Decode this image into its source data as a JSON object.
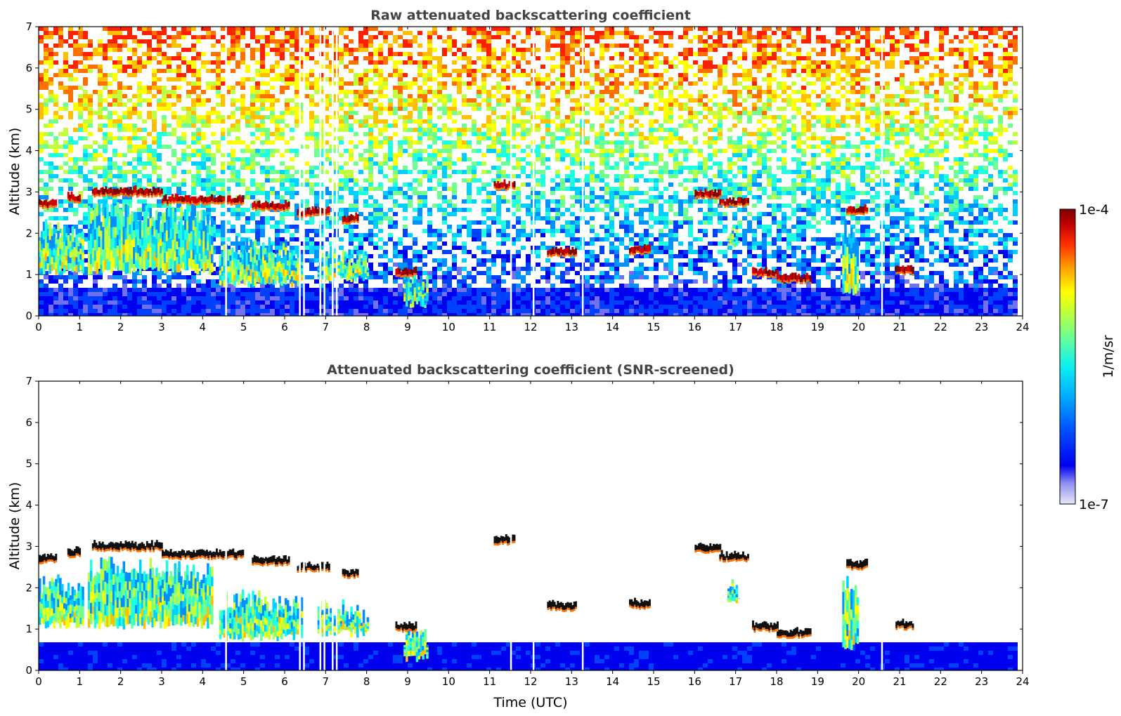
{
  "chart_data": [
    {
      "type": "heatmap",
      "title": "Raw attenuated backscattering coefficient",
      "xlabel": "",
      "ylabel": "Altitude (km)",
      "xlim": [
        0,
        24
      ],
      "ylim": [
        0,
        7
      ],
      "x_ticks": [
        "0",
        "1",
        "2",
        "3",
        "4",
        "5",
        "6",
        "7",
        "8",
        "9",
        "10",
        "11",
        "12",
        "13",
        "14",
        "15",
        "16",
        "17",
        "18",
        "19",
        "20",
        "21",
        "22",
        "23",
        "24"
      ],
      "y_ticks": [
        "0",
        "1",
        "2",
        "3",
        "4",
        "5",
        "6",
        "7"
      ],
      "data_end_time": 23.8,
      "colorscale": "jet",
      "features": {
        "cloud_layers": [
          {
            "t_start": 0.0,
            "t_end": 0.4,
            "alt": 2.65
          },
          {
            "t_start": 0.7,
            "t_end": 1.0,
            "alt": 2.8
          },
          {
            "t_start": 1.3,
            "t_end": 3.0,
            "alt": 2.95
          },
          {
            "t_start": 3.0,
            "t_end": 5.0,
            "alt": 2.75
          },
          {
            "t_start": 5.2,
            "t_end": 6.1,
            "alt": 2.6
          },
          {
            "t_start": 6.3,
            "t_end": 7.1,
            "alt": 2.45
          },
          {
            "t_start": 7.4,
            "t_end": 7.8,
            "alt": 2.3
          },
          {
            "t_start": 11.1,
            "t_end": 11.6,
            "alt": 3.1
          },
          {
            "t_start": 16.0,
            "t_end": 16.6,
            "alt": 2.9
          },
          {
            "t_start": 16.6,
            "t_end": 17.3,
            "alt": 2.7
          },
          {
            "t_start": 19.7,
            "t_end": 20.2,
            "alt": 2.5
          },
          {
            "t_start": 17.4,
            "t_end": 18.0,
            "alt": 1.0
          },
          {
            "t_start": 18.0,
            "t_end": 18.8,
            "alt": 0.85
          },
          {
            "t_start": 20.9,
            "t_end": 21.3,
            "alt": 1.05
          },
          {
            "t_start": 12.4,
            "t_end": 13.1,
            "alt": 1.5
          },
          {
            "t_start": 14.4,
            "t_end": 14.9,
            "alt": 1.55
          },
          {
            "t_start": 8.7,
            "t_end": 9.2,
            "alt": 1.0
          }
        ],
        "aerosol_plumes": [
          {
            "t_start": 0.0,
            "t_end": 1.1,
            "alt_top": 2.4,
            "alt_bottom": 1.0
          },
          {
            "t_start": 1.2,
            "t_end": 4.2,
            "alt_top": 2.8,
            "alt_bottom": 1.0
          },
          {
            "t_start": 4.4,
            "t_end": 6.4,
            "alt_top": 2.0,
            "alt_bottom": 0.7
          },
          {
            "t_start": 6.8,
            "t_end": 8.0,
            "alt_top": 1.8,
            "alt_bottom": 0.8
          },
          {
            "t_start": 8.9,
            "t_end": 9.5,
            "alt_top": 1.2,
            "alt_bottom": 0.2
          },
          {
            "t_start": 16.8,
            "t_end": 17.1,
            "alt_top": 2.3,
            "alt_bottom": 1.6
          },
          {
            "t_start": 19.6,
            "t_end": 20.0,
            "alt_top": 2.4,
            "alt_bottom": 0.5
          }
        ],
        "boundary_layer_top_km": 0.75,
        "data_gaps_hours": [
          4.55,
          6.35,
          6.45,
          6.85,
          6.95,
          7.15,
          7.25,
          11.5,
          12.05,
          13.25,
          20.55
        ]
      }
    },
    {
      "type": "heatmap",
      "title": "Attenuated backscattering coefficient (SNR-screened)",
      "xlabel": "Time (UTC)",
      "ylabel": "Altitude (km)",
      "xlim": [
        0,
        24
      ],
      "ylim": [
        0,
        7
      ],
      "x_ticks": [
        "0",
        "1",
        "2",
        "3",
        "4",
        "5",
        "6",
        "7",
        "8",
        "9",
        "10",
        "11",
        "12",
        "13",
        "14",
        "15",
        "16",
        "17",
        "18",
        "19",
        "20",
        "21",
        "22",
        "23",
        "24"
      ],
      "y_ticks": [
        "0",
        "1",
        "2",
        "3",
        "4",
        "5",
        "6",
        "7"
      ],
      "data_end_time": 23.8,
      "colorscale": "jet",
      "screened_layers_shown_black": true
    }
  ],
  "colorbar": {
    "label": "1/m/sr",
    "max_label": "1e-4",
    "min_label": "1e-7",
    "scale": "log",
    "colors": [
      "#e8e8f8",
      "#b0b0f0",
      "#7070f0",
      "#0000f0",
      "#0040ff",
      "#0090ff",
      "#00d0ff",
      "#20ffe0",
      "#70ff90",
      "#c0ff40",
      "#ffff00",
      "#ffc000",
      "#ff7000",
      "#ff2000",
      "#d00000",
      "#800000"
    ]
  }
}
